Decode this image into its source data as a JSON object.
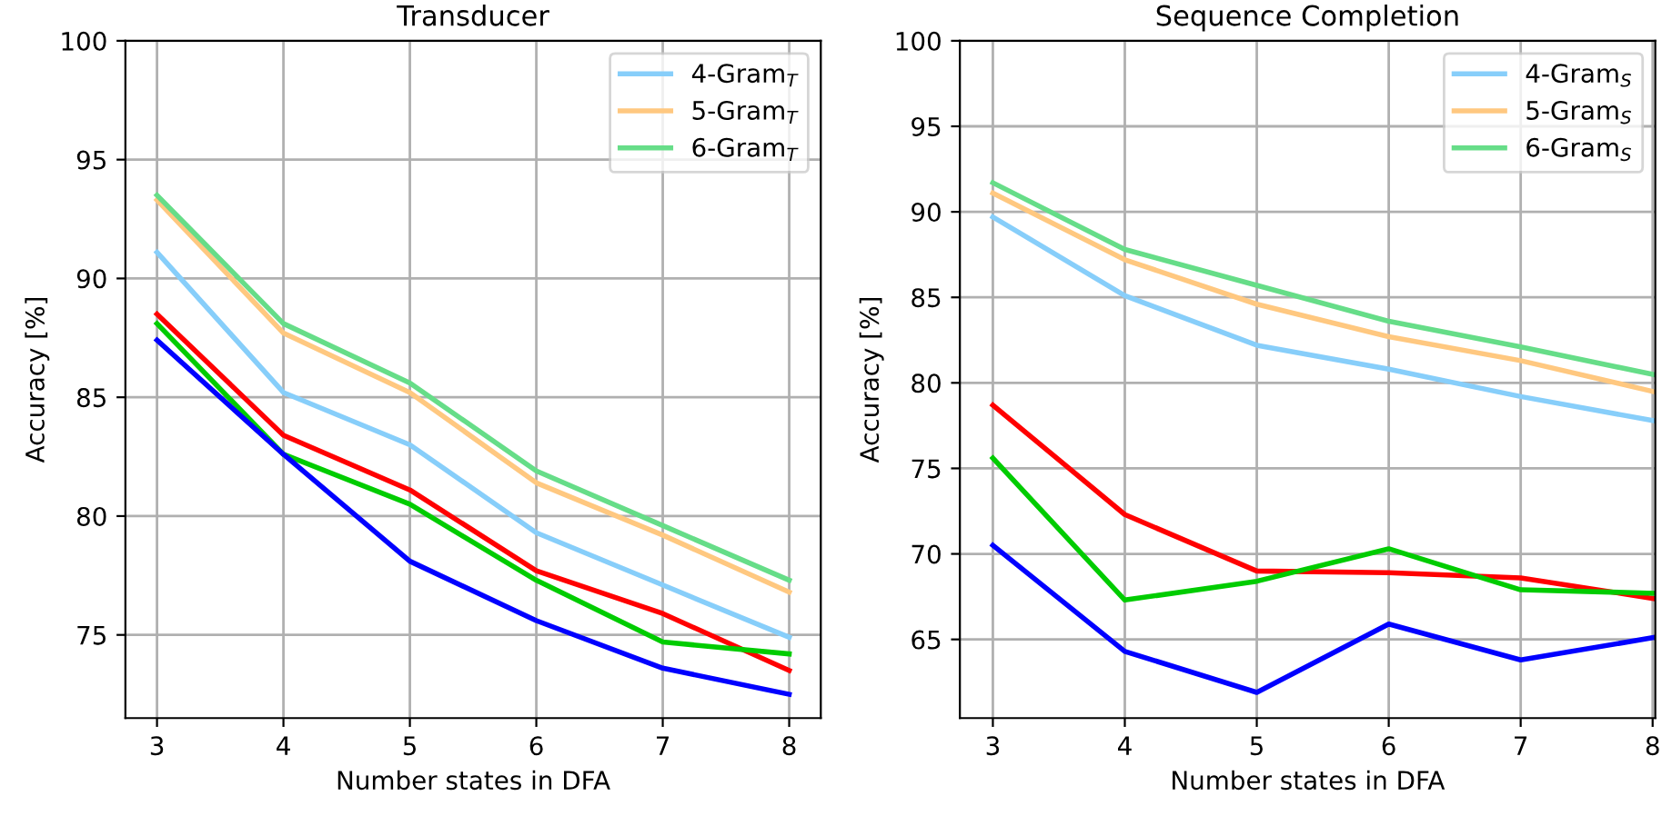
{
  "chart_data": [
    {
      "type": "line",
      "title": "Transducer",
      "xlabel": "Number states in DFA",
      "ylabel": "Accuracy [%]",
      "x": [
        3,
        4,
        5,
        6,
        7,
        8
      ],
      "xlim": [
        2.75,
        8.25
      ],
      "ylim": [
        71.5,
        100
      ],
      "xticks": [
        3,
        4,
        5,
        6,
        7,
        8
      ],
      "yticks": [
        75,
        80,
        85,
        90,
        95,
        100
      ],
      "grid": true,
      "legend": "top right",
      "series": [
        {
          "name": "4-Gram$_{T}$",
          "color": "#87cefa",
          "values": [
            91.1,
            85.2,
            83.0,
            79.3,
            77.1,
            74.9
          ]
        },
        {
          "name": "5-Gram$_{T}$",
          "color": "#ffc880",
          "values": [
            93.3,
            87.7,
            85.2,
            81.4,
            79.2,
            76.8
          ]
        },
        {
          "name": "6-Gram$_{T}$",
          "color": "#66dd88",
          "values": [
            93.5,
            88.1,
            85.6,
            81.9,
            79.6,
            77.3
          ]
        },
        {
          "color": "#ff0000",
          "values": [
            88.5,
            83.4,
            81.1,
            77.7,
            75.9,
            73.5
          ]
        },
        {
          "color": "#00cc00",
          "values": [
            88.1,
            82.6,
            80.5,
            77.3,
            74.7,
            74.2
          ]
        },
        {
          "color": "#0000ff",
          "values": [
            87.4,
            82.6,
            78.1,
            75.6,
            73.6,
            72.5
          ]
        }
      ]
    },
    {
      "type": "line",
      "title": "Sequence Completion",
      "xlabel": "Number states in DFA",
      "ylabel": "Accuracy [%]",
      "x": [
        3,
        4,
        5,
        6,
        7,
        8
      ],
      "xlim": [
        2.75,
        8.02
      ],
      "ylim": [
        60.4,
        100
      ],
      "xticks": [
        3,
        4,
        5,
        6,
        7,
        8
      ],
      "yticks": [
        65,
        70,
        75,
        80,
        85,
        90,
        95,
        100
      ],
      "grid": true,
      "legend": "top right",
      "series": [
        {
          "name": "4-Gram$_{S}$",
          "color": "#87cefa",
          "values": [
            89.7,
            85.1,
            82.2,
            80.8,
            79.2,
            77.8
          ]
        },
        {
          "name": "5-Gram$_{S}$",
          "color": "#ffc880",
          "values": [
            91.1,
            87.2,
            84.6,
            82.7,
            81.3,
            79.5
          ]
        },
        {
          "name": "6-Gram$_{S}$",
          "color": "#66dd88",
          "values": [
            91.7,
            87.8,
            85.7,
            83.6,
            82.1,
            80.5
          ]
        },
        {
          "color": "#ff0000",
          "values": [
            78.7,
            72.3,
            69.0,
            68.9,
            68.6,
            67.4
          ]
        },
        {
          "color": "#00cc00",
          "values": [
            75.6,
            67.3,
            68.4,
            70.3,
            67.9,
            67.7
          ]
        },
        {
          "color": "#0000ff",
          "values": [
            70.5,
            64.3,
            61.9,
            65.9,
            63.8,
            65.1
          ]
        }
      ]
    }
  ]
}
